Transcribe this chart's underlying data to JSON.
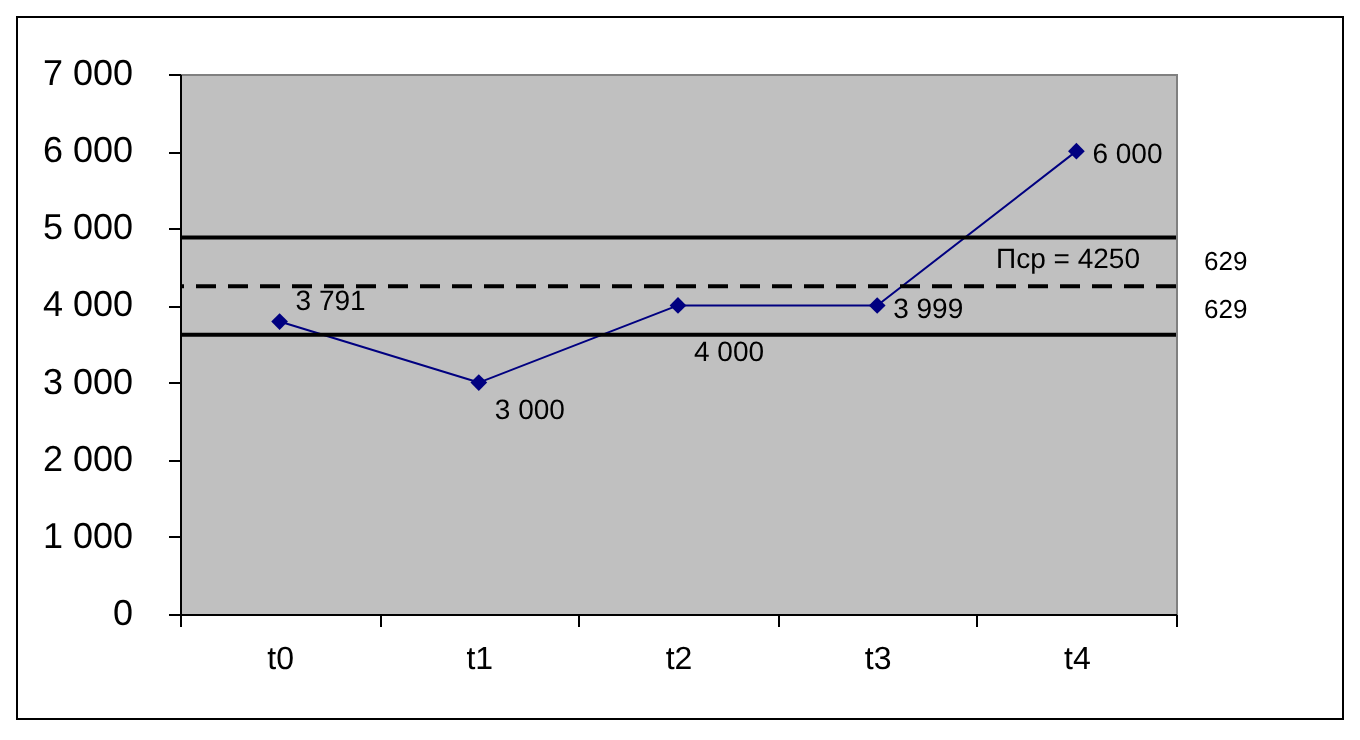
{
  "chart_data": {
    "type": "line",
    "categories": [
      "t0",
      "t1",
      "t2",
      "t3",
      "t4"
    ],
    "series": [
      {
        "color": "#000080",
        "values": [
          3791,
          3000,
          4000,
          3999,
          6000
        ]
      }
    ],
    "value_labels": [
      "3 791",
      "3 000",
      "4 000",
      "3 999",
      "6 000"
    ],
    "marker": "diamond",
    "ylim": [
      0,
      7000
    ],
    "yticks": [
      0,
      {
        "value": 1000,
        "label": "1 000"
      },
      {
        "value": 2000,
        "label": "2 000"
      },
      {
        "value": 3000,
        "label": "3 000"
      },
      {
        "value": 4000,
        "label": "4 000"
      },
      {
        "value": 5000,
        "label": "5 000"
      },
      {
        "value": 6000,
        "label": "6 000"
      },
      {
        "value": 7000,
        "label": "7 000"
      }
    ],
    "grid": false,
    "ref_lines": [
      {
        "axis": "y",
        "value": 4879,
        "color": "#000000",
        "line_style": "solid"
      },
      {
        "axis": "y",
        "value": 4250,
        "label": "Псp = 4250",
        "color": "#000000",
        "line_style": "dashed"
      },
      {
        "axis": "y",
        "value": 3621,
        "color": "#000000",
        "line_style": "solid"
      }
    ],
    "annotations": [
      "629",
      "629"
    ]
  }
}
